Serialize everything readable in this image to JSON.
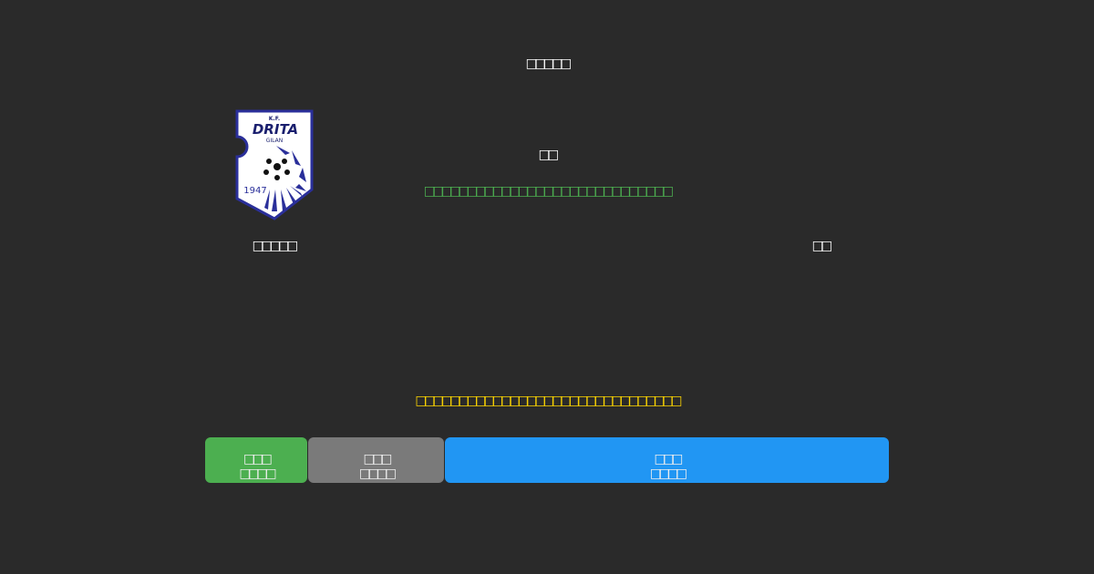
{
  "header": {
    "title": "□□□□□"
  },
  "match": {
    "home_team": "□□□□□",
    "away_team": "□□",
    "vs_label": "□□",
    "status_text": "□□□□□□□□□□□□□□□□□□□□□□□□□□□□□",
    "home_logo_text": {
      "top": "K.F.",
      "name": "DRITA",
      "city": "GILAN",
      "year": "1947"
    }
  },
  "notice": "□□□□□□□□□□□□□□□□□□□□□□□□□□□□□□□",
  "buttons": [
    {
      "line1": "□□□",
      "line2": "□□□□",
      "color": "#4caf50"
    },
    {
      "line1": "□□□",
      "line2": "□□□□",
      "color": "#7a7a7a"
    },
    {
      "line1": "□□□",
      "line2": "□□□□",
      "color": "#2196f3"
    }
  ],
  "colors": {
    "background": "#2a2a2a",
    "status": "#4caf50",
    "notice": "#ffd700"
  }
}
